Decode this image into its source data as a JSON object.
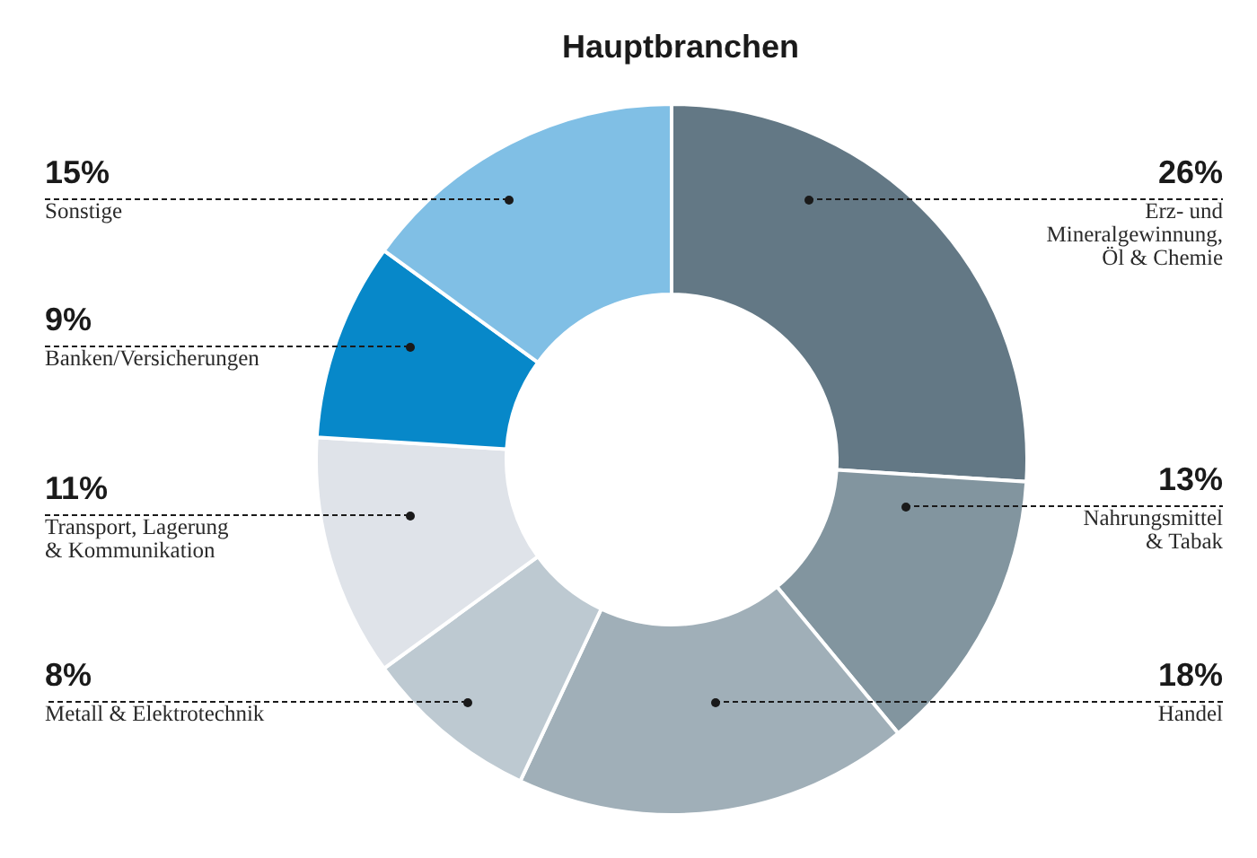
{
  "chart_data": {
    "type": "donut",
    "title": "Hauptbranchen",
    "categories": [
      "Erz- und\nMineralgewinnung,\nÖl & Chemie",
      "Nahrungsmittel\n& Tabak",
      "Handel",
      "Metall & Elektrotechnik",
      "Transport, Lagerung\n& Kommunikation",
      "Banken/Versicherungen",
      "Sonstige"
    ],
    "values": [
      26,
      13,
      18,
      8,
      11,
      9,
      15
    ],
    "colors": [
      "#637885",
      "#82959f",
      "#a0afb8",
      "#bdc9d1",
      "#dfe3e9",
      "#0788c9",
      "#80bfe5"
    ],
    "value_labels": [
      "26%",
      "13%",
      "18%",
      "8%",
      "11%",
      "9%",
      "15%"
    ]
  }
}
